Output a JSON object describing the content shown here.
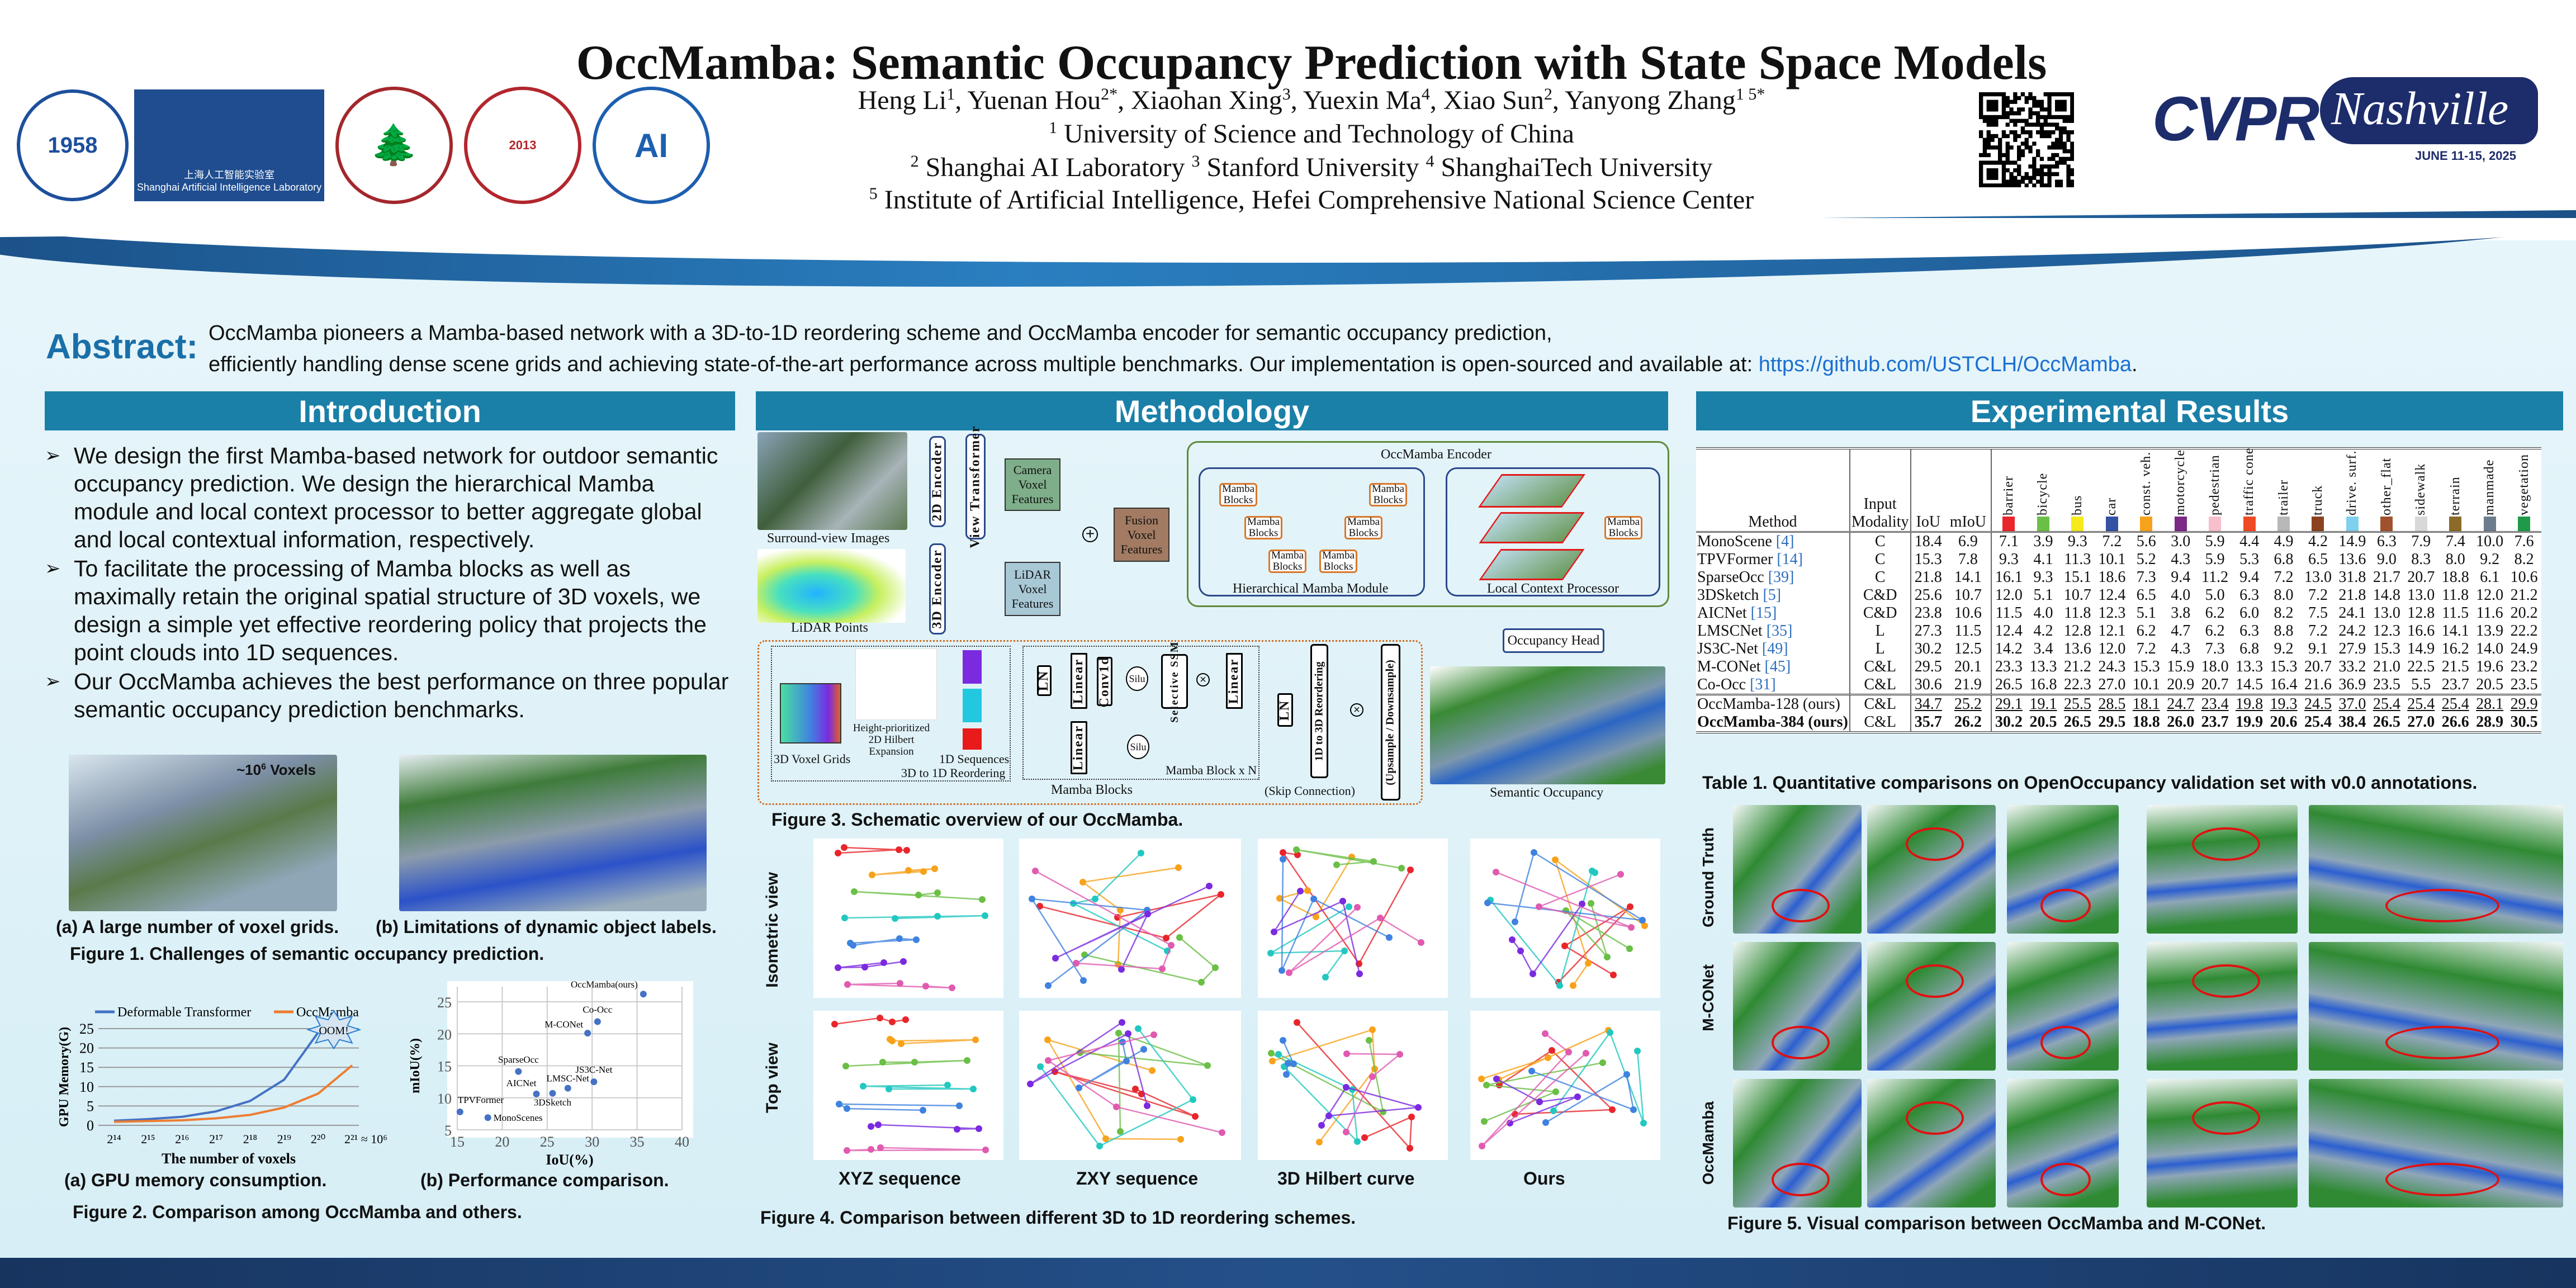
{
  "header": {
    "title": "OccMamba: Semantic Occupancy Prediction with State Space Models",
    "authors": [
      {
        "n": "Heng Li",
        "s": "1"
      },
      {
        "n": ", Yuenan Hou",
        "s": "2*"
      },
      {
        "n": ", Xiaohan Xing",
        "s": "3"
      },
      {
        "n": ", Yuexin Ma",
        "s": "4"
      },
      {
        "n": ", Xiao Sun",
        "s": "2"
      },
      {
        "n": ", Yanyong Zhang",
        "s": "1 5*"
      }
    ],
    "aff1": {
      "s": "1",
      "t": " University of Science and Technology of China"
    },
    "aff2": [
      {
        "s": "2",
        "t": " Shanghai AI Laboratory "
      },
      {
        "s": "3",
        "t": " Stanford University "
      },
      {
        "s": "4",
        "t": " ShanghaiTech University"
      }
    ],
    "aff3": {
      "s": "5",
      "t": " Institute of Artificial Intelligence, Hefei Comprehensive National Science Center"
    },
    "logos": [
      "中国科学技术大学 1958",
      "上海人工智能实验室 Shanghai Artificial Intelligence Laboratory",
      "STANFORD",
      "上海科技大学 SHANGHAITECH UNIVERSITY",
      "合肥综合性国家科学中心人工智能研究院"
    ],
    "conference": {
      "name": "CVPR",
      "city": "Nashville",
      "dates": "JUNE 11-15, 2025"
    }
  },
  "abstract": {
    "label": "Abstract:",
    "line1": "OccMamba pioneers a Mamba-based network with a 3D-to-1D reordering scheme and OccMamba encoder for semantic occupancy prediction,",
    "line2": "efficiently handling dense scene grids and achieving state-of-the-art performance across multiple benchmarks. Our implementation is open-sourced and available at: ",
    "link": "https://github.com/USTCLH/OccMamba",
    "end": "."
  },
  "introduction": {
    "title": "Introduction",
    "bullets": [
      "We design the first Mamba-based network for outdoor semantic occupancy prediction. We design the hierarchical Mamba module and local context processor to better aggregate global and local contextual information, respectively.",
      "To facilitate the processing of Mamba blocks as well as maximally retain the original spatial structure of 3D voxels, we design a simple yet effective reordering policy that projects the point clouds into 1D sequences.",
      "Our OccMamba achieves the best performance on three popular semantic occupancy prediction benchmarks."
    ],
    "fig1": {
      "annotation": "~10",
      "annotation_sup": "6",
      "annotation_tail": " Voxels",
      "cap_a": "(a) A large number of voxel grids.",
      "cap_b": "(b) Limitations of dynamic object labels.",
      "caption": "Figure 1. Challenges of semantic occupancy prediction."
    },
    "fig2": {
      "cap_a": "(a) GPU memory consumption.",
      "cap_b": "(b) Performance comparison.",
      "caption": "Figure 2. Comparison among OccMamba and others."
    }
  },
  "chart_data": [
    {
      "type": "line",
      "xlabel": "The number of voxels",
      "ylabel": "GPU Memory(G)",
      "categories": [
        "2^14",
        "2^15",
        "2^16",
        "2^17",
        "2^18",
        "2^19",
        "2^20",
        "2^21 ≈ 10^6"
      ],
      "ylim": [
        0,
        25
      ],
      "yticks": [
        0,
        5,
        10,
        15,
        20,
        25
      ],
      "grid": true,
      "legend": "top",
      "annotation": "OOM!",
      "series": [
        {
          "name": "Deformable Transformer",
          "color": "#4472c4",
          "values": [
            1.2,
            1.6,
            2.2,
            3.6,
            6.3,
            11.8,
            24,
            null
          ]
        },
        {
          "name": "OccMamba",
          "color": "#ed7d31",
          "values": [
            0.9,
            1.1,
            1.3,
            1.8,
            2.7,
            4.6,
            8.2,
            15.5
          ]
        }
      ]
    },
    {
      "type": "scatter",
      "xlabel": "IoU(%)",
      "ylabel": "mIoU(%)",
      "xlim": [
        15,
        40
      ],
      "ylim": [
        5,
        27
      ],
      "xticks": [
        15,
        20,
        25,
        30,
        35,
        40
      ],
      "yticks": [
        5,
        10,
        15,
        20,
        25
      ],
      "grid": true,
      "color": "#4472c4",
      "points": [
        {
          "label": "OccMamba(ours)",
          "x": 35.7,
          "y": 26.2
        },
        {
          "label": "Co-Occ",
          "x": 30.6,
          "y": 21.9
        },
        {
          "label": "M-CONet",
          "x": 29.5,
          "y": 20.1
        },
        {
          "label": "SparseOcc",
          "x": 21.8,
          "y": 14.1
        },
        {
          "label": "JS3C-Net",
          "x": 30.2,
          "y": 12.5
        },
        {
          "label": "LMSC-Net",
          "x": 27.3,
          "y": 11.5
        },
        {
          "label": "AICNet",
          "x": 23.8,
          "y": 10.6
        },
        {
          "label": "3DSketch",
          "x": 25.6,
          "y": 10.7
        },
        {
          "label": "TPVFormer",
          "x": 15.3,
          "y": 7.8
        },
        {
          "label": "MonoScenes",
          "x": 18.4,
          "y": 6.9
        }
      ]
    }
  ],
  "methodology": {
    "title": "Methodology",
    "fig3": {
      "surround": "Surround-view Images",
      "lidar": "LiDAR Points",
      "enc2d": "2D Encoder",
      "vt": "View Transformer",
      "enc3d": "3D Encoder",
      "cam": "Camera Voxel Features",
      "lid": "LiDAR Voxel Features",
      "fusion": "Fusion Voxel Features",
      "encoder": "OccMamba Encoder",
      "hmm": "Hierarchical Mamba Module",
      "lcp": "Local Context Processor",
      "mb": "Mamba Blocks",
      "head": "Occupancy Head",
      "semocc": "Semantic Occupancy",
      "grids": "3D Voxel Grids",
      "hilbert": "Height-prioritized 2D Hilbert Expansion",
      "seq": "1D Sequences",
      "reorder": "3D to 1D Reordering",
      "ln": "LN",
      "linear": "Linear",
      "conv": "Conv1d",
      "silu": "Silu",
      "ssm": "Selective SSM",
      "mbn": "Mamba Block x N",
      "mbs": "Mamba Blocks",
      "r13": "1D to 3D Reordering",
      "skip": "(Skip Connection)",
      "updown": "(Upsample / Downsample)",
      "caption": "Figure 3. Schematic overview of our OccMamba."
    },
    "fig4": {
      "rows": [
        "Isometric view",
        "Top view"
      ],
      "cols": [
        "XYZ sequence",
        "ZXY sequence",
        "3D Hilbert curve",
        "Ours"
      ],
      "caption": "Figure 4. Comparison between different 3D to 1D reordering schemes."
    }
  },
  "results": {
    "title": "Experimental Results",
    "table": {
      "h_method": "Method",
      "h_input": "Input",
      "h_modality": "Modality",
      "h_iou": "IoU",
      "h_miou": "mIoU",
      "classes": [
        {
          "n": "barrier",
          "c": "#e8262b"
        },
        {
          "n": "bicycle",
          "c": "#6abf45"
        },
        {
          "n": "bus",
          "c": "#f6e91c"
        },
        {
          "n": "car",
          "c": "#3452a4"
        },
        {
          "n": "const. veh.",
          "c": "#f7a21b"
        },
        {
          "n": "motorcycle",
          "c": "#7b2a85"
        },
        {
          "n": "pedestrian",
          "c": "#f7bfcb"
        },
        {
          "n": "traffic cone",
          "c": "#ef4a25"
        },
        {
          "n": "trailer",
          "c": "#b8b8b8"
        },
        {
          "n": "truck",
          "c": "#8b4220"
        },
        {
          "n": "drive. surf.",
          "c": "#7fcfee"
        },
        {
          "n": "other_flat",
          "c": "#a0522d"
        },
        {
          "n": "sidewalk",
          "c": "#d8d8d8"
        },
        {
          "n": "terrain",
          "c": "#8b6a2a"
        },
        {
          "n": "manmade",
          "c": "#6e7d8e"
        },
        {
          "n": "vegetation",
          "c": "#1f9a48"
        }
      ],
      "rows": [
        {
          "m": "MonoScene",
          "r": "[4]",
          "mod": "C",
          "v": [
            "18.4",
            "6.9",
            "7.1",
            "3.9",
            "9.3",
            "7.2",
            "5.6",
            "3.0",
            "5.9",
            "4.4",
            "4.9",
            "4.2",
            "14.9",
            "6.3",
            "7.9",
            "7.4",
            "10.0",
            "7.6"
          ]
        },
        {
          "m": "TPVFormer",
          "r": "[14]",
          "mod": "C",
          "v": [
            "15.3",
            "7.8",
            "9.3",
            "4.1",
            "11.3",
            "10.1",
            "5.2",
            "4.3",
            "5.9",
            "5.3",
            "6.8",
            "6.5",
            "13.6",
            "9.0",
            "8.3",
            "8.0",
            "9.2",
            "8.2"
          ]
        },
        {
          "m": "SparseOcc",
          "r": "[39]",
          "mod": "C",
          "v": [
            "21.8",
            "14.1",
            "16.1",
            "9.3",
            "15.1",
            "18.6",
            "7.3",
            "9.4",
            "11.2",
            "9.4",
            "7.2",
            "13.0",
            "31.8",
            "21.7",
            "20.7",
            "18.8",
            "6.1",
            "10.6"
          ]
        },
        {
          "m": "3DSketch",
          "r": "[5]",
          "mod": "C&D",
          "v": [
            "25.6",
            "10.7",
            "12.0",
            "5.1",
            "10.7",
            "12.4",
            "6.5",
            "4.0",
            "5.0",
            "6.3",
            "8.0",
            "7.2",
            "21.8",
            "14.8",
            "13.0",
            "11.8",
            "12.0",
            "21.2"
          ]
        },
        {
          "m": "AICNet",
          "r": "[15]",
          "mod": "C&D",
          "v": [
            "23.8",
            "10.6",
            "11.5",
            "4.0",
            "11.8",
            "12.3",
            "5.1",
            "3.8",
            "6.2",
            "6.0",
            "8.2",
            "7.5",
            "24.1",
            "13.0",
            "12.8",
            "11.5",
            "11.6",
            "20.2"
          ]
        },
        {
          "m": "LMSCNet",
          "r": "[35]",
          "mod": "L",
          "v": [
            "27.3",
            "11.5",
            "12.4",
            "4.2",
            "12.8",
            "12.1",
            "6.2",
            "4.7",
            "6.2",
            "6.3",
            "8.8",
            "7.2",
            "24.2",
            "12.3",
            "16.6",
            "14.1",
            "13.9",
            "22.2"
          ]
        },
        {
          "m": "JS3C-Net",
          "r": "[49]",
          "mod": "L",
          "v": [
            "30.2",
            "12.5",
            "14.2",
            "3.4",
            "13.6",
            "12.0",
            "7.2",
            "4.3",
            "7.3",
            "6.8",
            "9.2",
            "9.1",
            "27.9",
            "15.3",
            "14.9",
            "16.2",
            "14.0",
            "24.9"
          ]
        },
        {
          "m": "M-CONet",
          "r": "[45]",
          "mod": "C&L",
          "v": [
            "29.5",
            "20.1",
            "23.3",
            "13.3",
            "21.2",
            "24.3",
            "15.3",
            "15.9",
            "18.0",
            "13.3",
            "15.3",
            "20.7",
            "33.2",
            "21.0",
            "22.5",
            "21.5",
            "19.6",
            "23.2"
          ]
        },
        {
          "m": "Co-Occ",
          "r": "[31]",
          "mod": "C&L",
          "v": [
            "30.6",
            "21.9",
            "26.5",
            "16.8",
            "22.3",
            "27.0",
            "10.1",
            "20.9",
            "20.7",
            "14.5",
            "16.4",
            "21.6",
            "36.9",
            "23.5",
            "5.5",
            "23.7",
            "20.5",
            "23.5"
          ]
        }
      ],
      "ours": [
        {
          "m": "OccMamba-128 (ours)",
          "mod": "C&L",
          "v": [
            "34.7",
            "25.2",
            "29.1",
            "19.1",
            "25.5",
            "28.5",
            "18.1",
            "24.7",
            "23.4",
            "19.8",
            "19.3",
            "24.5",
            "37.0",
            "25.4",
            "25.4",
            "25.4",
            "28.1",
            "29.9"
          ]
        },
        {
          "m": "OccMamba-384 (ours)",
          "mod": "C&L",
          "v": [
            "35.7",
            "26.2",
            "30.2",
            "20.5",
            "26.5",
            "29.5",
            "18.8",
            "26.0",
            "23.7",
            "19.9",
            "20.6",
            "25.4",
            "38.4",
            "26.5",
            "27.0",
            "26.6",
            "28.9",
            "30.5"
          ]
        }
      ],
      "caption": "Table 1. Quantitative comparisons on OpenOccupancy validation set with v0.0 annotations."
    },
    "fig5": {
      "rows": [
        "Ground Truth",
        "M-CONet",
        "OccMamba"
      ],
      "caption": "Figure 5. Visual comparison between OccMamba and M-CONet."
    }
  }
}
